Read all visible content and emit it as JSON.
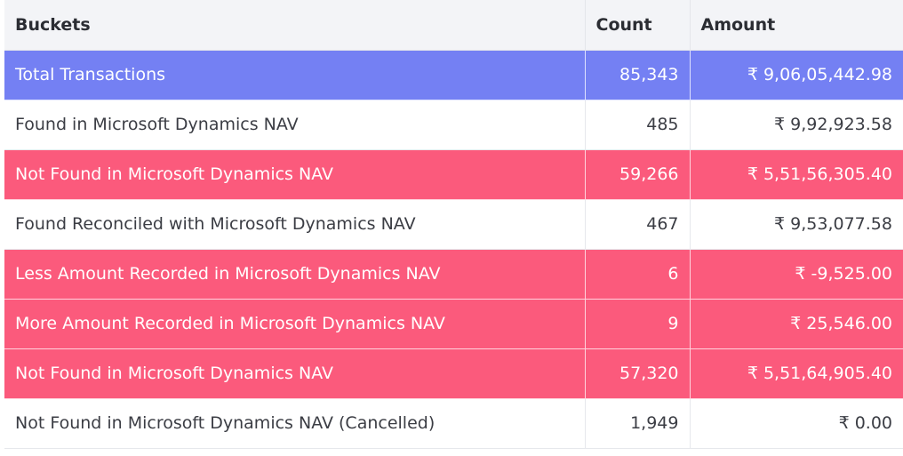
{
  "table": {
    "headers": {
      "bucket": "Buckets",
      "count": "Count",
      "amount": "Amount"
    },
    "colors": {
      "header_bg": "#f3f4f7",
      "total_row": "#7480f3",
      "alert_row": "#fb5a7c",
      "normal_row": "#ffffff"
    },
    "rows": [
      {
        "bucket": "Total Transactions",
        "count": "85,343",
        "amount": "₹ 9,06,05,442.98",
        "style": "blue"
      },
      {
        "bucket": "Found in Microsoft Dynamics NAV",
        "count": "485",
        "amount": "₹ 9,92,923.58",
        "style": "white"
      },
      {
        "bucket": "Not Found in Microsoft Dynamics NAV",
        "count": "59,266",
        "amount": "₹ 5,51,56,305.40",
        "style": "red"
      },
      {
        "bucket": "Found Reconciled with Microsoft Dynamics NAV",
        "count": "467",
        "amount": "₹ 9,53,077.58",
        "style": "white"
      },
      {
        "bucket": "Less Amount Recorded in Microsoft Dynamics NAV",
        "count": "6",
        "amount": "₹ -9,525.00",
        "style": "red"
      },
      {
        "bucket": "More Amount Recorded in Microsoft Dynamics NAV",
        "count": "9",
        "amount": "₹ 25,546.00",
        "style": "red"
      },
      {
        "bucket": "Not Found in Microsoft Dynamics NAV",
        "count": "57,320",
        "amount": "₹ 5,51,64,905.40",
        "style": "red"
      },
      {
        "bucket": "Not Found in Microsoft Dynamics NAV (Cancelled)",
        "count": "1,949",
        "amount": "₹ 0.00",
        "style": "white"
      }
    ]
  }
}
